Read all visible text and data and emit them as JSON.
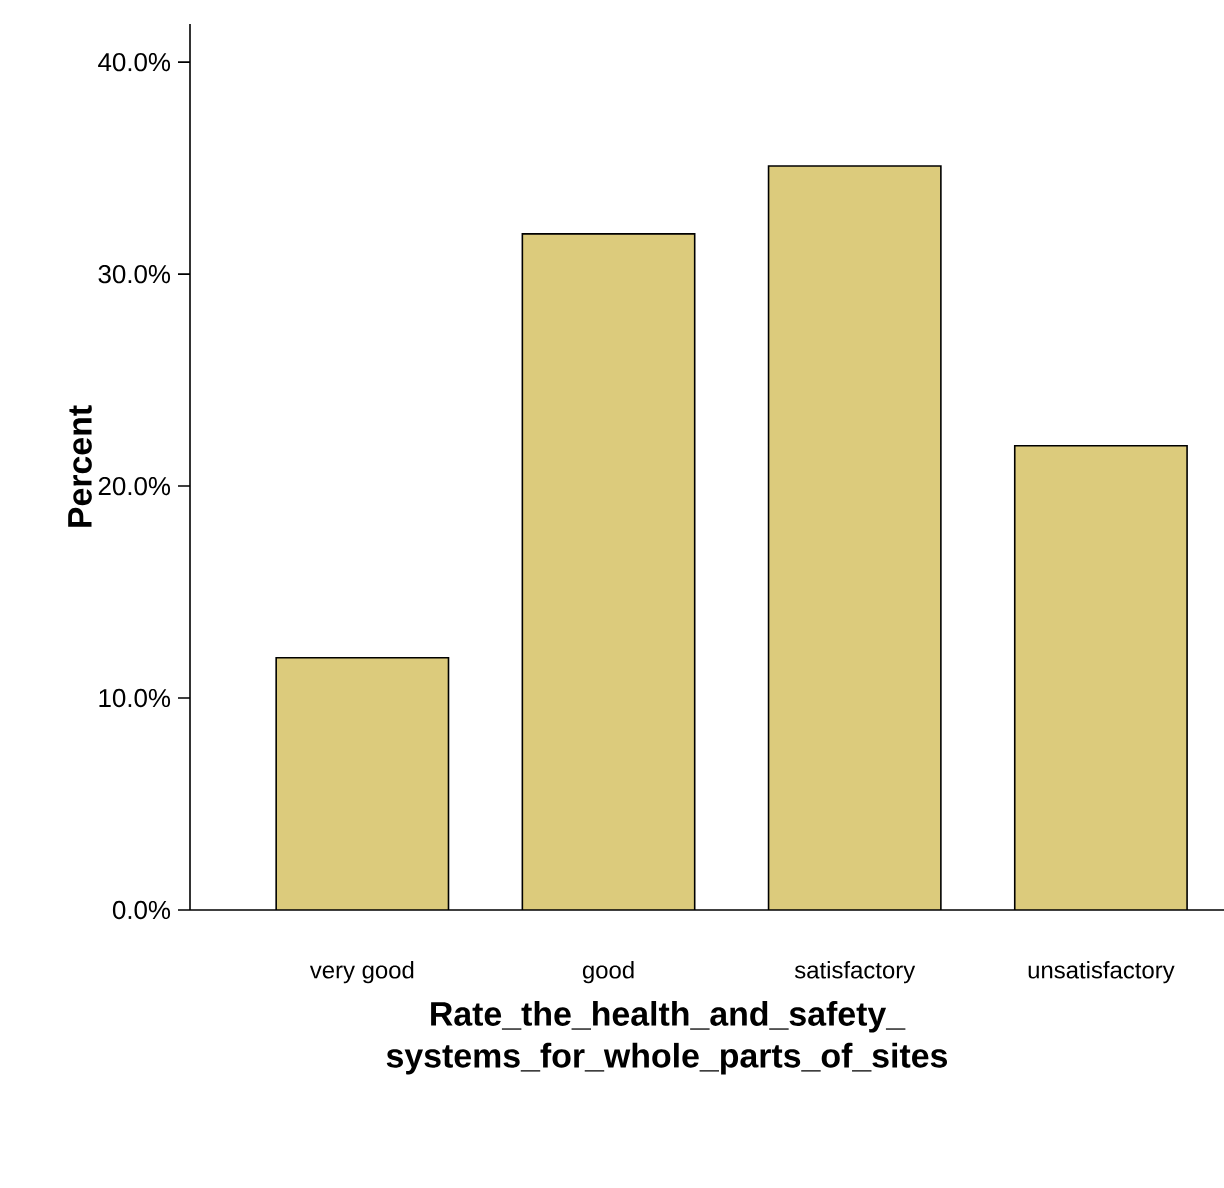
{
  "chart_data": {
    "type": "bar",
    "categories": [
      "very good",
      "good",
      "satisfactory",
      "unsatisfactory"
    ],
    "values": [
      11.9,
      31.9,
      35.1,
      21.9
    ],
    "color": "#dccb7c",
    "xlabel": "Rate_the_health_and_safety_systems_for_whole_parts_of_sites",
    "ylabel": "Percent",
    "ylim": [
      0,
      41.8
    ],
    "yticks": [
      {
        "value": 0,
        "label": "0.0%"
      },
      {
        "value": 10,
        "label": "10.0%"
      },
      {
        "value": 20,
        "label": "20.0%"
      },
      {
        "value": 30,
        "label": "30.0%"
      },
      {
        "value": 40,
        "label": "40.0%"
      }
    ],
    "grid": false
  }
}
